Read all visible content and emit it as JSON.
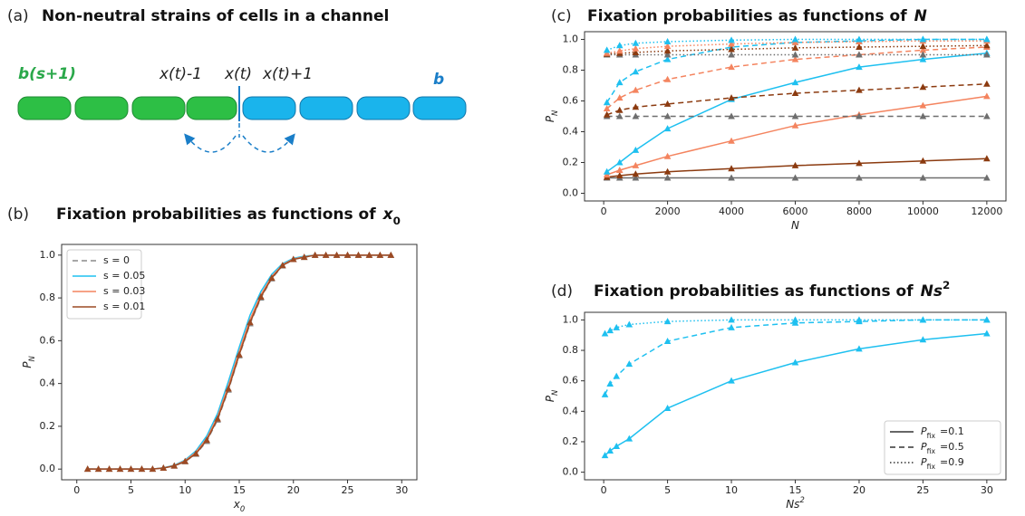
{
  "diagram": {
    "panel": "(a)",
    "title": "Non-neutral strains of cells in a channel",
    "labels": {
      "left_strain": "b(s+1)",
      "left_neighbor": "x(t)-1",
      "boundary": "x(t)",
      "right_neighbor": "x(t)+1",
      "right_strain": "b"
    }
  },
  "chart_data": [
    {
      "type": "line",
      "panel": "(b)",
      "title": "Fixation probabilities as functions of",
      "title_symbol": {
        "base": "x",
        "sub": "0"
      },
      "xlabel": {
        "base": "x",
        "sub": "0"
      },
      "ylabel": {
        "base": "P",
        "sub": "N"
      },
      "x": [
        1,
        2,
        3,
        4,
        5,
        6,
        7,
        8,
        9,
        10,
        11,
        12,
        13,
        14,
        15,
        16,
        17,
        18,
        19,
        20,
        21,
        22,
        23,
        24,
        25,
        26,
        27,
        28,
        29
      ],
      "xlim": [
        -1.4,
        31.4
      ],
      "xticks": [
        0,
        5,
        10,
        15,
        20,
        25,
        30
      ],
      "ylim": [
        -0.05,
        1.05
      ],
      "yticks": [
        {
          "value": 0,
          "label": "0.0"
        },
        0.2,
        0.4,
        0.6,
        0.8,
        {
          "value": 1,
          "label": "1.0"
        }
      ],
      "legend": "upper left",
      "series": [
        {
          "name": "s = 0",
          "color": "#8a8a8a",
          "style": "dashed",
          "markers": true,
          "values": [
            0,
            0,
            0,
            0,
            0,
            0,
            0,
            0.005,
            0.015,
            0.035,
            0.07,
            0.13,
            0.23,
            0.37,
            0.53,
            0.68,
            0.8,
            0.89,
            0.95,
            0.98,
            0.99,
            1,
            1,
            1,
            1,
            1,
            1,
            1,
            1
          ]
        },
        {
          "name": "s = 0.05",
          "color": "#1ec0f0",
          "style": "solid",
          "markers": false,
          "values": [
            0,
            0,
            0,
            0,
            0,
            0,
            0,
            0.006,
            0.018,
            0.042,
            0.085,
            0.155,
            0.26,
            0.41,
            0.57,
            0.72,
            0.83,
            0.91,
            0.96,
            0.985,
            0.995,
            1,
            1,
            1,
            1,
            1,
            1,
            1,
            1
          ]
        },
        {
          "name": "s = 0.03",
          "color": "#f4845f",
          "style": "solid",
          "markers": false,
          "values": [
            0,
            0,
            0,
            0,
            0,
            0,
            0,
            0.005,
            0.016,
            0.039,
            0.078,
            0.143,
            0.245,
            0.39,
            0.55,
            0.7,
            0.815,
            0.9,
            0.955,
            0.982,
            0.992,
            1,
            1,
            1,
            1,
            1,
            1,
            1,
            1
          ]
        },
        {
          "name": "s = 0.01",
          "color": "#9c4a24",
          "style": "solid",
          "markers": true,
          "values": [
            0,
            0,
            0,
            0,
            0,
            0,
            0,
            0.005,
            0.015,
            0.036,
            0.072,
            0.135,
            0.235,
            0.375,
            0.535,
            0.685,
            0.805,
            0.893,
            0.952,
            0.98,
            0.99,
            1,
            1,
            1,
            1,
            1,
            1,
            1,
            1
          ]
        }
      ]
    },
    {
      "type": "line",
      "panel": "(c)",
      "title": "Fixation probabilities as functions of",
      "title_symbol": {
        "base": "N"
      },
      "xlabel": {
        "base": "N"
      },
      "ylabel": {
        "base": "P",
        "sub": "N"
      },
      "x": [
        100,
        500,
        1000,
        2000,
        4000,
        6000,
        8000,
        10000,
        12000
      ],
      "xlim": [
        -600,
        12600
      ],
      "xticks": [
        0,
        2000,
        4000,
        6000,
        8000,
        10000,
        12000
      ],
      "ylim": [
        -0.05,
        1.05
      ],
      "yticks": [
        {
          "value": 0,
          "label": "0.0"
        },
        0.2,
        0.4,
        0.6,
        0.8,
        {
          "value": 1,
          "label": "1.0"
        }
      ],
      "series": [
        {
          "color": "#6e6e6e",
          "style": "solid",
          "markers": true,
          "values": [
            0.1,
            0.1,
            0.1,
            0.1,
            0.1,
            0.1,
            0.1,
            0.1,
            0.1
          ]
        },
        {
          "color": "#8b3a0f",
          "style": "solid",
          "markers": true,
          "values": [
            0.105,
            0.115,
            0.125,
            0.14,
            0.16,
            0.18,
            0.195,
            0.21,
            0.225
          ]
        },
        {
          "color": "#f4845f",
          "style": "solid",
          "markers": true,
          "values": [
            0.12,
            0.15,
            0.18,
            0.24,
            0.34,
            0.44,
            0.51,
            0.57,
            0.63
          ]
        },
        {
          "color": "#1ec0f0",
          "style": "solid",
          "markers": true,
          "values": [
            0.14,
            0.2,
            0.28,
            0.42,
            0.61,
            0.72,
            0.82,
            0.87,
            0.91
          ]
        },
        {
          "color": "#6e6e6e",
          "style": "dashed",
          "markers": true,
          "values": [
            0.5,
            0.5,
            0.5,
            0.5,
            0.5,
            0.5,
            0.5,
            0.5,
            0.5
          ]
        },
        {
          "color": "#8b3a0f",
          "style": "dashed",
          "markers": true,
          "values": [
            0.51,
            0.54,
            0.56,
            0.58,
            0.62,
            0.65,
            0.67,
            0.69,
            0.71
          ]
        },
        {
          "color": "#f4845f",
          "style": "dashed",
          "markers": true,
          "values": [
            0.55,
            0.62,
            0.67,
            0.74,
            0.82,
            0.87,
            0.9,
            0.93,
            0.95
          ]
        },
        {
          "color": "#1ec0f0",
          "style": "dashed",
          "markers": true,
          "values": [
            0.59,
            0.72,
            0.79,
            0.87,
            0.95,
            0.98,
            0.99,
            1,
            1
          ]
        },
        {
          "color": "#6e6e6e",
          "style": "dotted",
          "markers": true,
          "values": [
            0.9,
            0.9,
            0.9,
            0.9,
            0.9,
            0.9,
            0.9,
            0.9,
            0.9
          ]
        },
        {
          "color": "#8b3a0f",
          "style": "dotted",
          "markers": true,
          "values": [
            0.905,
            0.91,
            0.915,
            0.925,
            0.935,
            0.945,
            0.95,
            0.955,
            0.96
          ]
        },
        {
          "color": "#f4845f",
          "style": "dotted",
          "markers": true,
          "values": [
            0.91,
            0.925,
            0.94,
            0.955,
            0.97,
            0.98,
            0.985,
            0.99,
            0.99
          ]
        },
        {
          "color": "#1ec0f0",
          "style": "dotted",
          "markers": true,
          "values": [
            0.93,
            0.96,
            0.975,
            0.985,
            0.995,
            1,
            1,
            1,
            1
          ]
        }
      ]
    },
    {
      "type": "line",
      "panel": "(d)",
      "title": "Fixation probabilities as functions of",
      "title_symbol": {
        "base": "Ns",
        "sup": "2"
      },
      "xlabel": {
        "base": "Ns",
        "sup": "2"
      },
      "ylabel": {
        "base": "P",
        "sub": "N"
      },
      "x": [
        0.1,
        0.5,
        1,
        2,
        5,
        10,
        15,
        20,
        25,
        30
      ],
      "xlim": [
        -1.5,
        31.5
      ],
      "xticks": [
        0,
        5,
        10,
        15,
        20,
        25,
        30
      ],
      "ylim": [
        -0.05,
        1.05
      ],
      "yticks": [
        {
          "value": 0,
          "label": "0.0"
        },
        0.2,
        0.4,
        0.6,
        0.8,
        {
          "value": 1,
          "label": "1.0"
        }
      ],
      "legend": "lower right",
      "legend_color": "#333333",
      "series": [
        {
          "name": "=0.1",
          "name_symbol": {
            "base": "P",
            "sub": "fix"
          },
          "color": "#1ec0f0",
          "style": "solid",
          "markers": true,
          "values": [
            0.11,
            0.14,
            0.17,
            0.22,
            0.42,
            0.6,
            0.72,
            0.81,
            0.87,
            0.91
          ]
        },
        {
          "name": "=0.5",
          "name_symbol": {
            "base": "P",
            "sub": "fix"
          },
          "color": "#1ec0f0",
          "style": "dashed",
          "markers": true,
          "values": [
            0.51,
            0.58,
            0.63,
            0.71,
            0.86,
            0.95,
            0.98,
            0.99,
            1,
            1
          ]
        },
        {
          "name": "=0.9",
          "name_symbol": {
            "base": "P",
            "sub": "fix"
          },
          "color": "#1ec0f0",
          "style": "dotted",
          "markers": true,
          "values": [
            0.91,
            0.93,
            0.95,
            0.97,
            0.99,
            1,
            1,
            1,
            1,
            1
          ]
        }
      ]
    }
  ]
}
